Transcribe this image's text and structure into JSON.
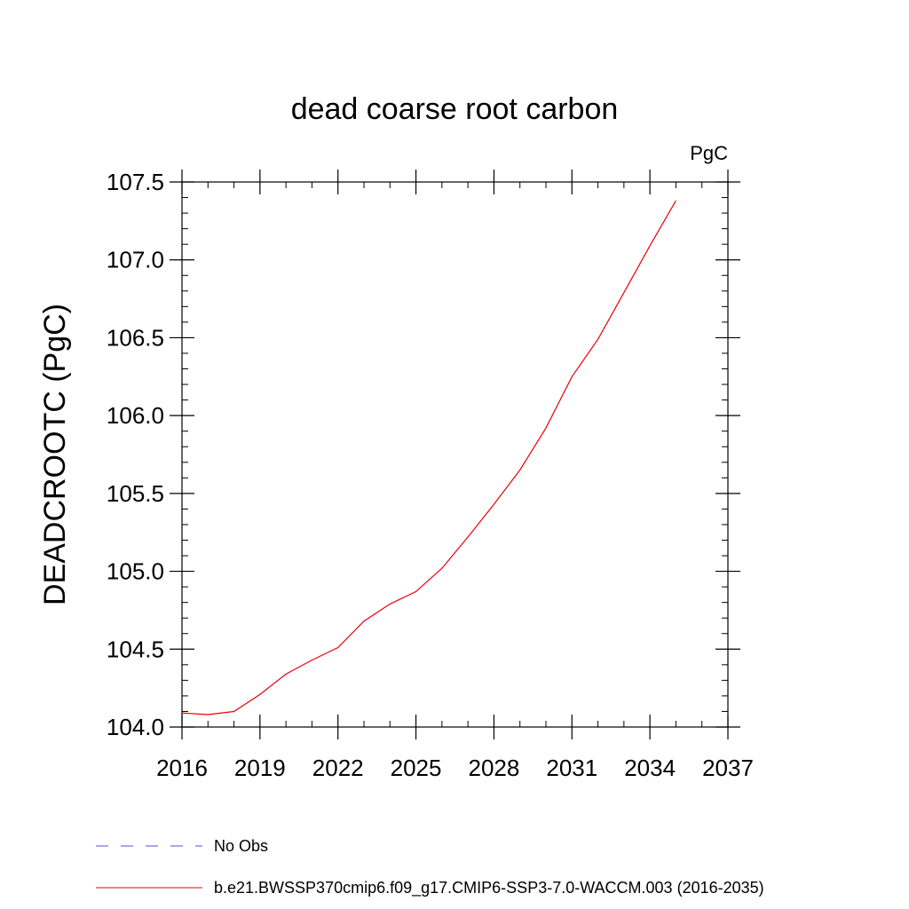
{
  "chart_data": {
    "type": "line",
    "title": "dead coarse root carbon",
    "units_label": "PgC",
    "xlabel": "",
    "ylabel": "DEADCROOTC  (PgC)",
    "xlim": [
      2016,
      2037
    ],
    "ylim": [
      104.0,
      107.5
    ],
    "x_ticks": [
      "2016",
      "2019",
      "2022",
      "2025",
      "2028",
      "2031",
      "2034",
      "2037"
    ],
    "y_ticks": [
      "104.0",
      "104.5",
      "105.0",
      "105.5",
      "106.0",
      "106.5",
      "107.0",
      "107.5"
    ],
    "grid": false,
    "legend_position": "bottom",
    "series": [
      {
        "name": "No Obs",
        "style": "dashed",
        "color": "#5a4fcf",
        "x": [],
        "y": []
      },
      {
        "name": "b.e21.BWSSP370cmip6.f09_g17.CMIP6-SSP3-7.0-WACCM.003 (2016-2035)",
        "style": "solid",
        "color": "#e8000b",
        "x": [
          2016,
          2017,
          2018,
          2019,
          2020,
          2021,
          2022,
          2023,
          2024,
          2025,
          2026,
          2027,
          2028,
          2029,
          2030,
          2031,
          2032,
          2033,
          2034,
          2035
        ],
        "y": [
          104.09,
          104.08,
          104.1,
          104.21,
          104.34,
          104.43,
          104.51,
          104.68,
          104.79,
          104.87,
          105.02,
          105.22,
          105.43,
          105.65,
          105.92,
          106.25,
          106.49,
          106.79,
          107.09,
          107.38
        ]
      }
    ]
  }
}
